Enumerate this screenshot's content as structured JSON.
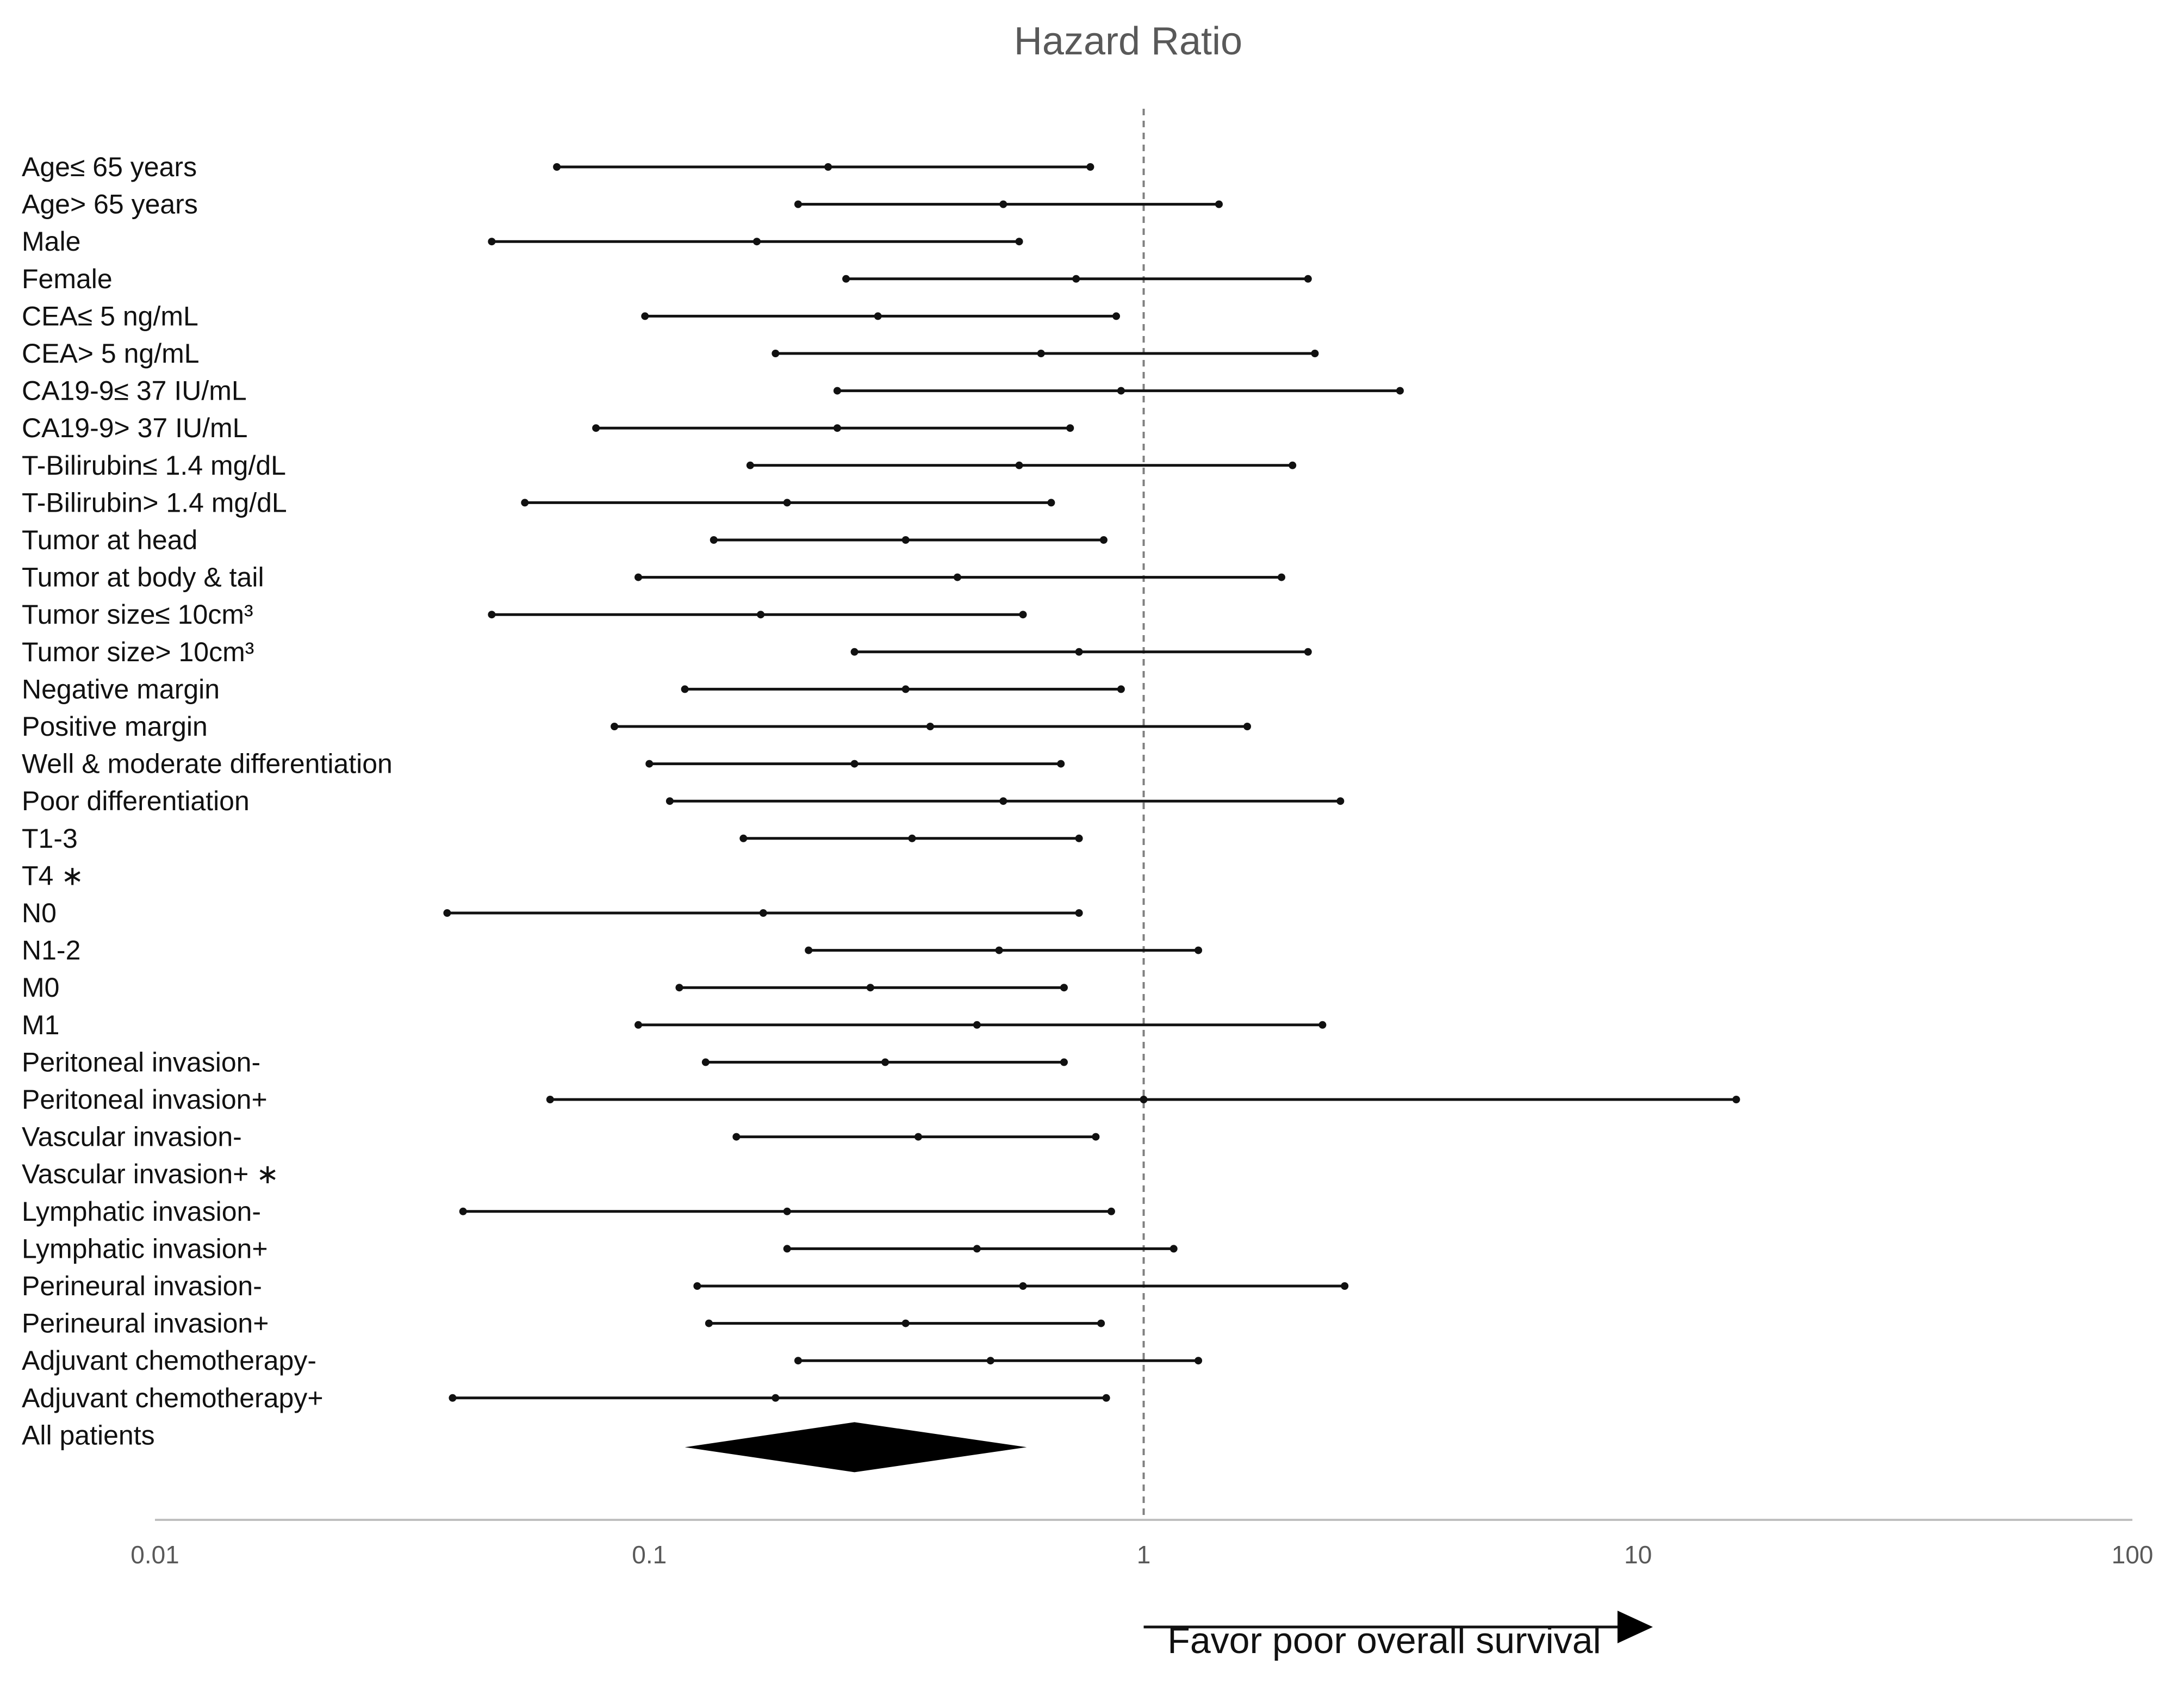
{
  "chart_data": {
    "type": "forest",
    "title": "Hazard Ratio",
    "x_scale": "log",
    "xlim": [
      0.01,
      100
    ],
    "x_ticks": [
      {
        "value": 0.01,
        "label": "0.01"
      },
      {
        "value": 0.1,
        "label": "0.1"
      },
      {
        "value": 1,
        "label": "1"
      },
      {
        "value": 10,
        "label": "10"
      },
      {
        "value": 100,
        "label": "100"
      }
    ],
    "reference_line": 1,
    "direction_label": "Favor poor overall survival",
    "rows": [
      {
        "label": "Age≤ 65 years",
        "lower": 0.065,
        "hr": 0.23,
        "upper": 0.78
      },
      {
        "label": "Age> 65 years",
        "lower": 0.2,
        "hr": 0.52,
        "upper": 1.42
      },
      {
        "label": "Male",
        "lower": 0.048,
        "hr": 0.165,
        "upper": 0.56
      },
      {
        "label": "Female",
        "lower": 0.25,
        "hr": 0.73,
        "upper": 2.15
      },
      {
        "label": "CEA≤ 5 ng/mL",
        "lower": 0.098,
        "hr": 0.29,
        "upper": 0.88
      },
      {
        "label": "CEA> 5 ng/mL",
        "lower": 0.18,
        "hr": 0.62,
        "upper": 2.22
      },
      {
        "label": "CA19-9≤ 37 IU/mL",
        "lower": 0.24,
        "hr": 0.9,
        "upper": 3.3
      },
      {
        "label": "CA19-9> 37 IU/mL",
        "lower": 0.078,
        "hr": 0.24,
        "upper": 0.71
      },
      {
        "label": "T-Bilirubin≤ 1.4 mg/dL",
        "lower": 0.16,
        "hr": 0.56,
        "upper": 2.0
      },
      {
        "label": "T-Bilirubin> 1.4 mg/dL",
        "lower": 0.056,
        "hr": 0.19,
        "upper": 0.65
      },
      {
        "label": "Tumor at head",
        "lower": 0.135,
        "hr": 0.33,
        "upper": 0.83
      },
      {
        "label": "Tumor at body & tail",
        "lower": 0.095,
        "hr": 0.42,
        "upper": 1.9
      },
      {
        "label": "Tumor size≤ 10cm³",
        "lower": 0.048,
        "hr": 0.168,
        "upper": 0.57
      },
      {
        "label": "Tumor size> 10cm³",
        "lower": 0.26,
        "hr": 0.74,
        "upper": 2.15
      },
      {
        "label": "Negative margin",
        "lower": 0.118,
        "hr": 0.33,
        "upper": 0.9
      },
      {
        "label": "Positive margin",
        "lower": 0.085,
        "hr": 0.37,
        "upper": 1.62
      },
      {
        "label": "Well & moderate differentiation",
        "lower": 0.1,
        "hr": 0.26,
        "upper": 0.68
      },
      {
        "label": "Poor differentiation",
        "lower": 0.11,
        "hr": 0.52,
        "upper": 2.5
      },
      {
        "label": "T1-3",
        "lower": 0.155,
        "hr": 0.34,
        "upper": 0.74
      },
      {
        "label": "T4 ∗",
        "lower": null,
        "hr": null,
        "upper": null
      },
      {
        "label": "N0",
        "lower": 0.039,
        "hr": 0.17,
        "upper": 0.74
      },
      {
        "label": "N1-2",
        "lower": 0.21,
        "hr": 0.51,
        "upper": 1.29
      },
      {
        "label": "M0",
        "lower": 0.115,
        "hr": 0.28,
        "upper": 0.69
      },
      {
        "label": "M1",
        "lower": 0.095,
        "hr": 0.46,
        "upper": 2.3
      },
      {
        "label": "Peritoneal invasion-",
        "lower": 0.13,
        "hr": 0.3,
        "upper": 0.69
      },
      {
        "label": "Peritoneal invasion+",
        "lower": 0.063,
        "hr": 1.0,
        "upper": 15.8
      },
      {
        "label": "Vascular invasion-",
        "lower": 0.15,
        "hr": 0.35,
        "upper": 0.8
      },
      {
        "label": "Vascular invasion+ ∗",
        "lower": null,
        "hr": null,
        "upper": null
      },
      {
        "label": "Lymphatic invasion-",
        "lower": 0.042,
        "hr": 0.19,
        "upper": 0.86
      },
      {
        "label": "Lymphatic invasion+",
        "lower": 0.19,
        "hr": 0.46,
        "upper": 1.15
      },
      {
        "label": "Perineural invasion-",
        "lower": 0.125,
        "hr": 0.57,
        "upper": 2.55
      },
      {
        "label": "Perineural invasion+",
        "lower": 0.132,
        "hr": 0.33,
        "upper": 0.82
      },
      {
        "label": "Adjuvant chemotherapy-",
        "lower": 0.2,
        "hr": 0.49,
        "upper": 1.29
      },
      {
        "label": "Adjuvant chemotherapy+",
        "lower": 0.04,
        "hr": 0.18,
        "upper": 0.84
      }
    ],
    "summary": {
      "label": "All patients",
      "lower": 0.118,
      "hr": 0.26,
      "upper": 0.58
    },
    "colors": {
      "ci_line": "#111111",
      "point": "#111111",
      "diamond": "#000000",
      "axis": "#bfbfbf",
      "reference_line": "#808080",
      "title": "#595959"
    }
  }
}
